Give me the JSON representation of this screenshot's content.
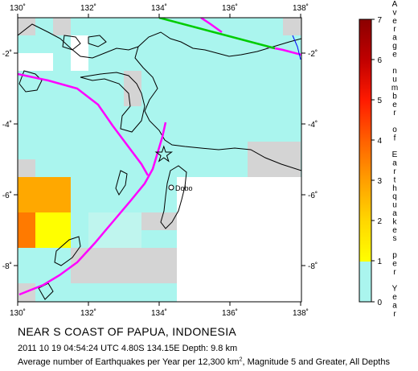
{
  "map": {
    "x_ticks": [
      "130˚",
      "132˚",
      "134˚",
      "136˚",
      "138˚"
    ],
    "y_ticks_left": [
      "-2˚",
      "-4˚",
      "-6˚",
      "-8˚"
    ],
    "y_ticks_right": [
      "-2˚",
      "-4˚",
      "-6˚",
      "-8˚"
    ],
    "city_label": "Dobo",
    "epicenter_symbol": "star",
    "colors": {
      "ocean_low": "#aaf5ee",
      "land_low": "#ffffff",
      "gray_cell": "#d4d4d4",
      "orange": "#ff7a00",
      "amber": "#ffa800",
      "yellow": "#ffff00",
      "plate_boundary": "#ff00ff",
      "fault_green": "#00cc00",
      "river_blue": "#0000ff"
    }
  },
  "legend": {
    "ticks": [
      "7",
      "6",
      "5",
      "4",
      "3",
      "2",
      "1",
      "0"
    ],
    "label_chars": [
      "A",
      "v",
      "e",
      "r",
      "a",
      "g",
      "e",
      "",
      "n",
      "u",
      "m",
      "b",
      "e",
      "r",
      "",
      "o",
      "f",
      "",
      "E",
      "a",
      "r",
      "t",
      "h",
      "q",
      "u",
      "a",
      "k",
      "e",
      "s",
      "",
      "p",
      "e",
      "r",
      "",
      "Y",
      "e",
      "a",
      "r"
    ],
    "colors": [
      "#8b0000",
      "#c00000",
      "#ff1a00",
      "#ff6000",
      "#ff9f00",
      "#ffd700",
      "#ffff00",
      "#aaf5ee"
    ]
  },
  "text": {
    "title": "NEAR S COAST OF PAPUA, INDONESIA",
    "event_line": "2011 10 19 04:54:24 UTC 4.80S 134.15E Depth: 9.8 km",
    "caption_prefix": "Average number of Earthquakes per Year per 12,300 km",
    "caption_sup": "2",
    "caption_suffix": ", Magnitude 5 and Greater, All Depths"
  }
}
